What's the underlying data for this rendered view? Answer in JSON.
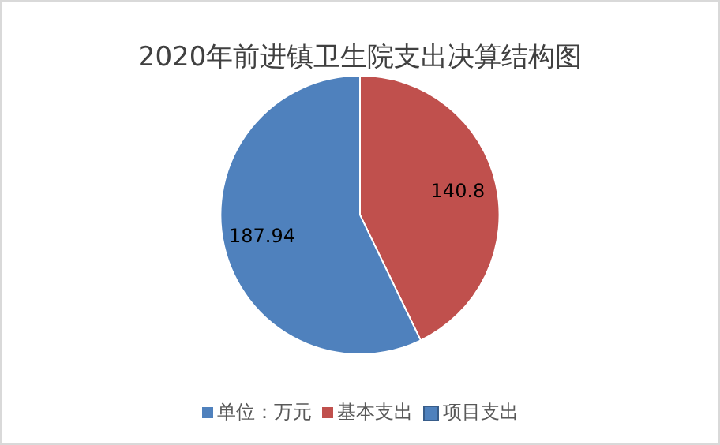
{
  "chart_data": {
    "type": "pie",
    "title": "2020年前进镇卫生院支出决算结构图",
    "legend_title": "单位：万元",
    "categories": [
      "基本支出",
      "项目支出"
    ],
    "values": [
      140.8,
      187.94
    ],
    "colors": [
      "#c0504d",
      "#4f81bd"
    ],
    "data_labels": true,
    "legend": "bottom"
  }
}
